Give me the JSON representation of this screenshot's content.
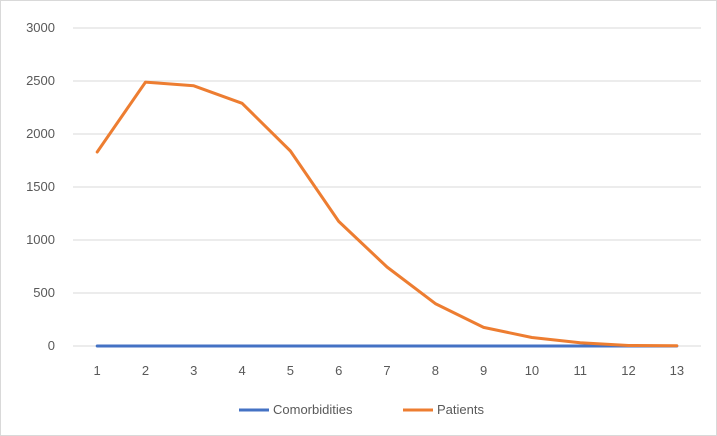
{
  "chart_data": {
    "type": "line",
    "title": "",
    "xlabel": "",
    "ylabel": "",
    "categories": [
      "1",
      "2",
      "3",
      "4",
      "5",
      "6",
      "7",
      "8",
      "9",
      "10",
      "11",
      "12",
      "13"
    ],
    "ylim": [
      0,
      3000
    ],
    "yticks": [
      0,
      500,
      1000,
      1500,
      2000,
      2500,
      3000
    ],
    "grid": "horizontal",
    "legend_position": "bottom",
    "series": [
      {
        "name": "Comorbidities",
        "color": "#4472c4",
        "values": [
          0,
          0,
          0,
          0,
          0,
          0,
          0,
          0,
          0,
          0,
          0,
          0,
          0
        ]
      },
      {
        "name": "Patients",
        "color": "#ed7d31",
        "values": [
          1830,
          2490,
          2455,
          2290,
          1840,
          1175,
          745,
          400,
          175,
          80,
          30,
          5,
          3
        ]
      }
    ]
  }
}
